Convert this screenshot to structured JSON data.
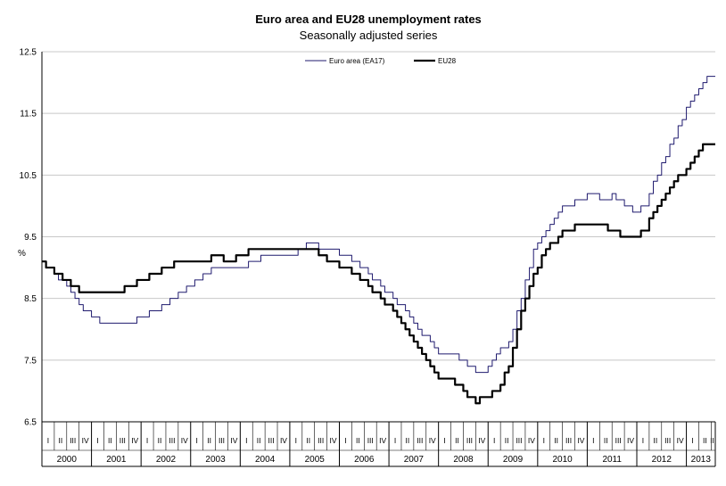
{
  "chart_data": {
    "type": "line",
    "title": "Euro area and EU28 unemployment rates",
    "subtitle": "Seasonally adjusted series",
    "ylabel": "%",
    "ylim": [
      6.5,
      12.5
    ],
    "yticks": [
      "6.5",
      "7.5",
      "8.5",
      "9.5",
      "10.5",
      "11.5",
      "12.5"
    ],
    "yticks_values": [
      6.5,
      7.5,
      8.5,
      9.5,
      10.5,
      11.5,
      12.5
    ],
    "years": [
      "2000",
      "2001",
      "2002",
      "2003",
      "2004",
      "2005",
      "2006",
      "2007",
      "2008",
      "2009",
      "2010",
      "2011",
      "2012",
      "2013"
    ],
    "quarter_labels": [
      "I",
      "II",
      "III",
      "IV"
    ],
    "months_total": 163,
    "grid": true,
    "legend_position": "top",
    "series": [
      {
        "name": "Euro area (EA17)",
        "color": "#1f1a6e",
        "width": 1,
        "anchors": [
          [
            0,
            9.1
          ],
          [
            3,
            8.9
          ],
          [
            6,
            8.7
          ],
          [
            9,
            8.4
          ],
          [
            12,
            8.2
          ],
          [
            15,
            8.1
          ],
          [
            18,
            8.1
          ],
          [
            21,
            8.1
          ],
          [
            24,
            8.2
          ],
          [
            27,
            8.3
          ],
          [
            30,
            8.4
          ],
          [
            33,
            8.6
          ],
          [
            36,
            8.7
          ],
          [
            39,
            8.9
          ],
          [
            42,
            9.0
          ],
          [
            45,
            9.0
          ],
          [
            48,
            9.0
          ],
          [
            51,
            9.1
          ],
          [
            54,
            9.2
          ],
          [
            57,
            9.2
          ],
          [
            60,
            9.2
          ],
          [
            63,
            9.3
          ],
          [
            65,
            9.4
          ],
          [
            67,
            9.3
          ],
          [
            70,
            9.3
          ],
          [
            73,
            9.2
          ],
          [
            76,
            9.1
          ],
          [
            79,
            8.9
          ],
          [
            82,
            8.7
          ],
          [
            85,
            8.5
          ],
          [
            88,
            8.3
          ],
          [
            91,
            8.0
          ],
          [
            94,
            7.8
          ],
          [
            96,
            7.6
          ],
          [
            99,
            7.6
          ],
          [
            102,
            7.5
          ],
          [
            105,
            7.3
          ],
          [
            107,
            7.3
          ],
          [
            110,
            7.6
          ],
          [
            113,
            7.8
          ],
          [
            116,
            8.5
          ],
          [
            119,
            9.3
          ],
          [
            122,
            9.6
          ],
          [
            125,
            9.9
          ],
          [
            127,
            10.0
          ],
          [
            130,
            10.1
          ],
          [
            133,
            10.2
          ],
          [
            136,
            10.1
          ],
          [
            138,
            10.2
          ],
          [
            141,
            10.0
          ],
          [
            143,
            9.9
          ],
          [
            146,
            10.0
          ],
          [
            148,
            10.4
          ],
          [
            151,
            10.8
          ],
          [
            153,
            11.1
          ],
          [
            156,
            11.6
          ],
          [
            159,
            11.9
          ],
          [
            161,
            12.1
          ],
          [
            163,
            12.1
          ]
        ]
      },
      {
        "name": "EU28",
        "color": "#000000",
        "width": 2.2,
        "anchors": [
          [
            0,
            9.1
          ],
          [
            3,
            8.9
          ],
          [
            6,
            8.8
          ],
          [
            9,
            8.6
          ],
          [
            12,
            8.6
          ],
          [
            15,
            8.6
          ],
          [
            18,
            8.6
          ],
          [
            21,
            8.7
          ],
          [
            24,
            8.8
          ],
          [
            27,
            8.9
          ],
          [
            30,
            9.0
          ],
          [
            33,
            9.1
          ],
          [
            36,
            9.1
          ],
          [
            39,
            9.1
          ],
          [
            42,
            9.2
          ],
          [
            45,
            9.1
          ],
          [
            48,
            9.2
          ],
          [
            51,
            9.3
          ],
          [
            54,
            9.3
          ],
          [
            57,
            9.3
          ],
          [
            60,
            9.3
          ],
          [
            63,
            9.3
          ],
          [
            65,
            9.3
          ],
          [
            67,
            9.2
          ],
          [
            70,
            9.1
          ],
          [
            73,
            9.0
          ],
          [
            76,
            8.9
          ],
          [
            79,
            8.7
          ],
          [
            82,
            8.5
          ],
          [
            85,
            8.3
          ],
          [
            88,
            8.0
          ],
          [
            91,
            7.7
          ],
          [
            94,
            7.4
          ],
          [
            96,
            7.2
          ],
          [
            99,
            7.2
          ],
          [
            102,
            7.0
          ],
          [
            105,
            6.8
          ],
          [
            107,
            6.9
          ],
          [
            110,
            7.0
          ],
          [
            113,
            7.4
          ],
          [
            116,
            8.3
          ],
          [
            119,
            8.9
          ],
          [
            122,
            9.3
          ],
          [
            125,
            9.5
          ],
          [
            127,
            9.6
          ],
          [
            130,
            9.7
          ],
          [
            133,
            9.7
          ],
          [
            136,
            9.7
          ],
          [
            138,
            9.6
          ],
          [
            141,
            9.5
          ],
          [
            143,
            9.5
          ],
          [
            146,
            9.6
          ],
          [
            148,
            9.9
          ],
          [
            151,
            10.2
          ],
          [
            153,
            10.4
          ],
          [
            156,
            10.6
          ],
          [
            159,
            10.9
          ],
          [
            161,
            11.0
          ],
          [
            163,
            11.0
          ]
        ]
      }
    ]
  }
}
